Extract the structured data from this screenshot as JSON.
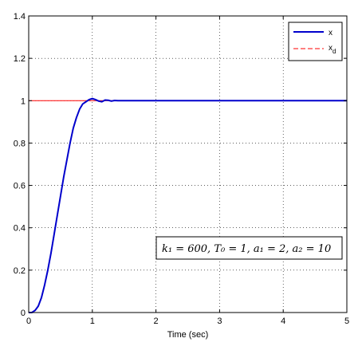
{
  "chart_data": {
    "type": "line",
    "title": "",
    "xlabel": "Time (sec)",
    "ylabel": "",
    "xlim": [
      0,
      5
    ],
    "ylim": [
      0,
      1.4
    ],
    "xticks": [
      0,
      1,
      2,
      3,
      4,
      5
    ],
    "yticks": [
      0,
      0.2,
      0.4,
      0.6,
      0.8,
      1,
      1.2,
      1.4
    ],
    "xtick_labels": [
      "0",
      "1",
      "2",
      "3",
      "4",
      "5"
    ],
    "ytick_labels": [
      "0",
      "0.2",
      "0.4",
      "0.6",
      "0.8",
      "1",
      "1.2",
      "1.4"
    ],
    "grid": true,
    "legend_position": "top-right",
    "legend": [
      "x",
      "x_d"
    ],
    "annotation": "k₁ = 600, T₀ = 1, a₁ = 2, a₂ = 10",
    "series": [
      {
        "name": "x",
        "color": "#0000cc",
        "style": "solid",
        "x": [
          0,
          0.05,
          0.1,
          0.15,
          0.2,
          0.25,
          0.3,
          0.35,
          0.4,
          0.45,
          0.5,
          0.55,
          0.6,
          0.65,
          0.7,
          0.75,
          0.8,
          0.85,
          0.9,
          0.95,
          1.0,
          1.05,
          1.1,
          1.15,
          1.2,
          1.25,
          1.3,
          1.35,
          1.4,
          1.5,
          2,
          3,
          4,
          5
        ],
        "y": [
          0,
          0.0,
          0.01,
          0.03,
          0.07,
          0.13,
          0.2,
          0.28,
          0.37,
          0.46,
          0.55,
          0.64,
          0.72,
          0.8,
          0.87,
          0.92,
          0.96,
          0.985,
          0.995,
          1.005,
          1.01,
          1.005,
          0.998,
          0.995,
          1.003,
          1.002,
          0.998,
          1.001,
          1.0,
          1.0,
          1.0,
          1.0,
          1.0,
          1.0
        ]
      },
      {
        "name": "x_d",
        "color": "#ff0000",
        "style": "dashed",
        "x": [
          0,
          5
        ],
        "y": [
          1,
          1
        ]
      }
    ]
  }
}
